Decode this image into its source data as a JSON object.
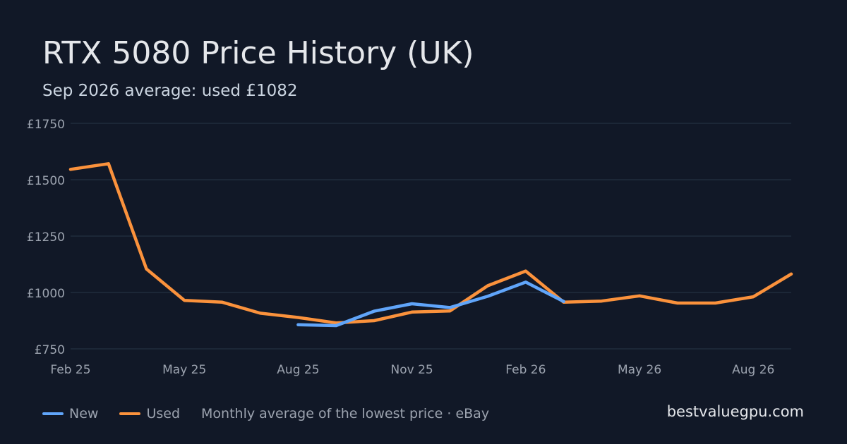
{
  "title": "RTX 5080 Price History (UK)",
  "subtitle": "Sep 2026 average: used £1082",
  "note": "Monthly average of the lowest price · eBay",
  "brand": "bestvaluegpu.com",
  "colors": {
    "background": "#111827",
    "grid": "#243041",
    "new": "#60a5fa",
    "used": "#fb923c",
    "tick": "#9ca3af"
  },
  "chart_data": {
    "type": "line",
    "x": [
      "2025-02",
      "2025-03",
      "2025-04",
      "2025-05",
      "2025-06",
      "2025-07",
      "2025-08",
      "2025-09",
      "2025-10",
      "2025-11",
      "2025-12",
      "2026-01",
      "2026-02",
      "2026-03",
      "2026-04",
      "2026-05",
      "2026-06",
      "2026-07",
      "2026-08",
      "2026-09"
    ],
    "x_tick_labels": [
      "Feb 25",
      "May 25",
      "Aug 25",
      "Nov 25",
      "Feb 26",
      "May 26",
      "Aug 26"
    ],
    "y_tick_labels": [
      "£750",
      "£1000",
      "£1250",
      "£1500",
      "£1750"
    ],
    "yticks": [
      750,
      1000,
      1250,
      1500,
      1750
    ],
    "ylim": [
      750,
      1750
    ],
    "xlim": [
      "2025-02",
      "2026-09"
    ],
    "grid": true,
    "legend_position": "bottom-left",
    "series": [
      {
        "name": "New",
        "color": "#60a5fa",
        "x": [
          "2025-08",
          "2025-09",
          "2025-10",
          "2025-11",
          "2025-12",
          "2026-01",
          "2026-02",
          "2026-03"
        ],
        "values": [
          857,
          853,
          917,
          950,
          933,
          983,
          1046,
          960
        ]
      },
      {
        "name": "Used",
        "color": "#fb923c",
        "x": [
          "2025-02",
          "2025-03",
          "2025-04",
          "2025-05",
          "2025-06",
          "2025-07",
          "2025-08",
          "2025-09",
          "2025-10",
          "2025-11",
          "2025-12",
          "2026-01",
          "2026-02",
          "2026-03",
          "2026-04",
          "2026-05",
          "2026-06",
          "2026-07",
          "2026-08",
          "2026-09"
        ],
        "values": [
          1546,
          1571,
          1104,
          965,
          957,
          908,
          889,
          865,
          875,
          913,
          918,
          1030,
          1095,
          957,
          962,
          985,
          953,
          953,
          981,
          1082
        ]
      }
    ]
  }
}
